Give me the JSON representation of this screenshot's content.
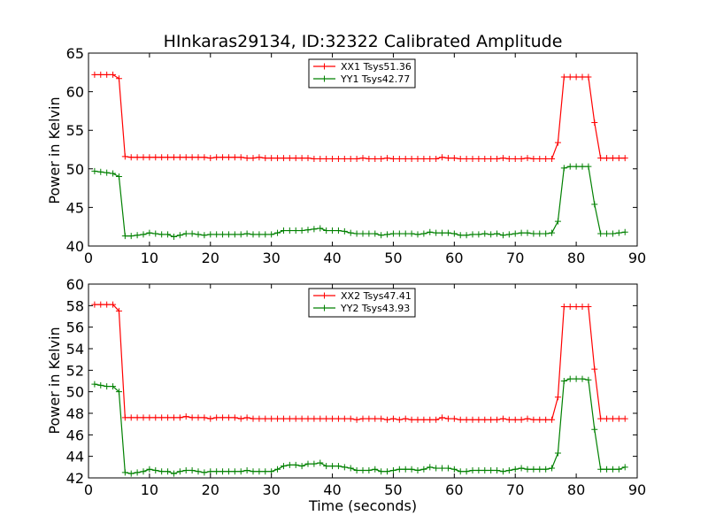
{
  "chart_data": [
    {
      "type": "line",
      "title": "HInkaras29134, ID:32322 Calibrated Amplitude",
      "xlabel": "",
      "ylabel": "Power in Kelvin",
      "xlim": [
        0,
        90
      ],
      "ylim": [
        40,
        65
      ],
      "xticks": [
        "0",
        "10",
        "20",
        "30",
        "40",
        "50",
        "60",
        "70",
        "80",
        "90"
      ],
      "yticks": [
        "40",
        "45",
        "50",
        "55",
        "60",
        "65"
      ],
      "grid": false,
      "legend_position": "top-center",
      "series": [
        {
          "name": "XX1 Tsys51.36",
          "color": "#ff0000",
          "x": [
            1,
            2,
            3,
            4,
            5,
            6,
            7,
            8,
            9,
            10,
            11,
            12,
            13,
            14,
            15,
            16,
            17,
            18,
            19,
            20,
            21,
            22,
            23,
            24,
            25,
            26,
            27,
            28,
            29,
            30,
            31,
            32,
            33,
            34,
            35,
            36,
            37,
            38,
            39,
            40,
            41,
            42,
            43,
            44,
            45,
            46,
            47,
            48,
            49,
            50,
            51,
            52,
            53,
            54,
            55,
            56,
            57,
            58,
            59,
            60,
            61,
            62,
            63,
            64,
            65,
            66,
            67,
            68,
            69,
            70,
            71,
            72,
            73,
            74,
            75,
            76,
            77,
            78,
            79,
            80,
            81,
            82,
            83,
            84,
            85,
            86,
            87,
            88
          ],
          "y": [
            62.2,
            62.2,
            62.2,
            62.2,
            61.7,
            51.6,
            51.5,
            51.5,
            51.5,
            51.5,
            51.5,
            51.5,
            51.5,
            51.5,
            51.5,
            51.5,
            51.5,
            51.5,
            51.5,
            51.4,
            51.5,
            51.5,
            51.5,
            51.5,
            51.5,
            51.4,
            51.4,
            51.5,
            51.4,
            51.4,
            51.4,
            51.4,
            51.4,
            51.4,
            51.4,
            51.4,
            51.3,
            51.3,
            51.3,
            51.3,
            51.3,
            51.3,
            51.3,
            51.3,
            51.4,
            51.3,
            51.3,
            51.3,
            51.4,
            51.3,
            51.3,
            51.3,
            51.3,
            51.3,
            51.3,
            51.3,
            51.3,
            51.5,
            51.4,
            51.4,
            51.3,
            51.3,
            51.3,
            51.3,
            51.3,
            51.3,
            51.3,
            51.4,
            51.3,
            51.3,
            51.3,
            51.4,
            51.3,
            51.3,
            51.3,
            51.3,
            53.4,
            61.9,
            61.9,
            61.9,
            61.9,
            61.9,
            56.0,
            51.4,
            51.4,
            51.4,
            51.4,
            51.4
          ]
        },
        {
          "name": "YY1 Tsys42.77",
          "color": "#008000",
          "x": [
            1,
            2,
            3,
            4,
            5,
            6,
            7,
            8,
            9,
            10,
            11,
            12,
            13,
            14,
            15,
            16,
            17,
            18,
            19,
            20,
            21,
            22,
            23,
            24,
            25,
            26,
            27,
            28,
            29,
            30,
            31,
            32,
            33,
            34,
            35,
            36,
            37,
            38,
            39,
            40,
            41,
            42,
            43,
            44,
            45,
            46,
            47,
            48,
            49,
            50,
            51,
            52,
            53,
            54,
            55,
            56,
            57,
            58,
            59,
            60,
            61,
            62,
            63,
            64,
            65,
            66,
            67,
            68,
            69,
            70,
            71,
            72,
            73,
            74,
            75,
            76,
            77,
            78,
            79,
            80,
            81,
            82,
            83,
            84,
            85,
            86,
            87,
            88
          ],
          "y": [
            49.7,
            49.6,
            49.5,
            49.4,
            49.0,
            41.3,
            41.3,
            41.4,
            41.5,
            41.7,
            41.6,
            41.5,
            41.5,
            41.2,
            41.4,
            41.6,
            41.6,
            41.5,
            41.4,
            41.5,
            41.5,
            41.5,
            41.5,
            41.5,
            41.5,
            41.6,
            41.5,
            41.5,
            41.5,
            41.5,
            41.7,
            42.0,
            42.0,
            42.0,
            42.0,
            42.1,
            42.2,
            42.3,
            42.0,
            42.0,
            42.0,
            41.9,
            41.7,
            41.6,
            41.6,
            41.6,
            41.6,
            41.4,
            41.5,
            41.6,
            41.6,
            41.6,
            41.6,
            41.5,
            41.6,
            41.8,
            41.7,
            41.7,
            41.7,
            41.6,
            41.4,
            41.4,
            41.5,
            41.5,
            41.6,
            41.5,
            41.6,
            41.4,
            41.5,
            41.6,
            41.7,
            41.7,
            41.6,
            41.6,
            41.6,
            41.7,
            43.2,
            50.1,
            50.3,
            50.3,
            50.3,
            50.3,
            45.4,
            41.6,
            41.6,
            41.6,
            41.7,
            41.8
          ]
        }
      ]
    },
    {
      "type": "line",
      "title": "",
      "xlabel": "Time (seconds)",
      "ylabel": "Power in Kelvin",
      "xlim": [
        0,
        90
      ],
      "ylim": [
        42,
        60
      ],
      "xticks": [
        "0",
        "10",
        "20",
        "30",
        "40",
        "50",
        "60",
        "70",
        "80",
        "90"
      ],
      "yticks": [
        "42",
        "44",
        "46",
        "48",
        "50",
        "52",
        "54",
        "56",
        "58",
        "60"
      ],
      "grid": false,
      "legend_position": "top-center",
      "series": [
        {
          "name": "XX2 Tsys47.41",
          "color": "#ff0000",
          "x": [
            1,
            2,
            3,
            4,
            5,
            6,
            7,
            8,
            9,
            10,
            11,
            12,
            13,
            14,
            15,
            16,
            17,
            18,
            19,
            20,
            21,
            22,
            23,
            24,
            25,
            26,
            27,
            28,
            29,
            30,
            31,
            32,
            33,
            34,
            35,
            36,
            37,
            38,
            39,
            40,
            41,
            42,
            43,
            44,
            45,
            46,
            47,
            48,
            49,
            50,
            51,
            52,
            53,
            54,
            55,
            56,
            57,
            58,
            59,
            60,
            61,
            62,
            63,
            64,
            65,
            66,
            67,
            68,
            69,
            70,
            71,
            72,
            73,
            74,
            75,
            76,
            77,
            78,
            79,
            80,
            81,
            82,
            83,
            84,
            85,
            86,
            87,
            88
          ],
          "y": [
            58.1,
            58.1,
            58.1,
            58.1,
            57.5,
            47.6,
            47.6,
            47.6,
            47.6,
            47.6,
            47.6,
            47.6,
            47.6,
            47.6,
            47.6,
            47.7,
            47.6,
            47.6,
            47.6,
            47.5,
            47.6,
            47.6,
            47.6,
            47.6,
            47.5,
            47.6,
            47.5,
            47.5,
            47.5,
            47.5,
            47.5,
            47.5,
            47.5,
            47.5,
            47.5,
            47.5,
            47.5,
            47.5,
            47.5,
            47.5,
            47.5,
            47.5,
            47.5,
            47.4,
            47.5,
            47.5,
            47.5,
            47.5,
            47.4,
            47.5,
            47.4,
            47.5,
            47.4,
            47.4,
            47.4,
            47.4,
            47.4,
            47.6,
            47.5,
            47.5,
            47.4,
            47.4,
            47.4,
            47.4,
            47.4,
            47.4,
            47.4,
            47.5,
            47.4,
            47.4,
            47.4,
            47.5,
            47.4,
            47.4,
            47.4,
            47.4,
            49.5,
            57.9,
            57.9,
            57.9,
            57.9,
            57.9,
            52.1,
            47.5,
            47.5,
            47.5,
            47.5,
            47.5
          ]
        },
        {
          "name": "YY2 Tsys43.93",
          "color": "#008000",
          "x": [
            1,
            2,
            3,
            4,
            5,
            6,
            7,
            8,
            9,
            10,
            11,
            12,
            13,
            14,
            15,
            16,
            17,
            18,
            19,
            20,
            21,
            22,
            23,
            24,
            25,
            26,
            27,
            28,
            29,
            30,
            31,
            32,
            33,
            34,
            35,
            36,
            37,
            38,
            39,
            40,
            41,
            42,
            43,
            44,
            45,
            46,
            47,
            48,
            49,
            50,
            51,
            52,
            53,
            54,
            55,
            56,
            57,
            58,
            59,
            60,
            61,
            62,
            63,
            64,
            65,
            66,
            67,
            68,
            69,
            70,
            71,
            72,
            73,
            74,
            75,
            76,
            77,
            78,
            79,
            80,
            81,
            82,
            83,
            84,
            85,
            86,
            87,
            88
          ],
          "y": [
            50.7,
            50.6,
            50.5,
            50.5,
            50.0,
            42.5,
            42.4,
            42.5,
            42.6,
            42.8,
            42.7,
            42.6,
            42.6,
            42.4,
            42.6,
            42.7,
            42.7,
            42.6,
            42.5,
            42.6,
            42.6,
            42.6,
            42.6,
            42.6,
            42.6,
            42.7,
            42.6,
            42.6,
            42.6,
            42.6,
            42.8,
            43.1,
            43.2,
            43.2,
            43.1,
            43.3,
            43.3,
            43.4,
            43.1,
            43.1,
            43.1,
            43.0,
            42.9,
            42.7,
            42.7,
            42.7,
            42.8,
            42.6,
            42.6,
            42.7,
            42.8,
            42.8,
            42.8,
            42.7,
            42.8,
            43.0,
            42.9,
            42.9,
            42.9,
            42.8,
            42.6,
            42.6,
            42.7,
            42.7,
            42.7,
            42.7,
            42.7,
            42.6,
            42.7,
            42.8,
            42.9,
            42.8,
            42.8,
            42.8,
            42.8,
            42.9,
            44.3,
            51.0,
            51.2,
            51.2,
            51.2,
            51.1,
            46.5,
            42.8,
            42.8,
            42.8,
            42.8,
            43.0
          ]
        }
      ]
    }
  ]
}
